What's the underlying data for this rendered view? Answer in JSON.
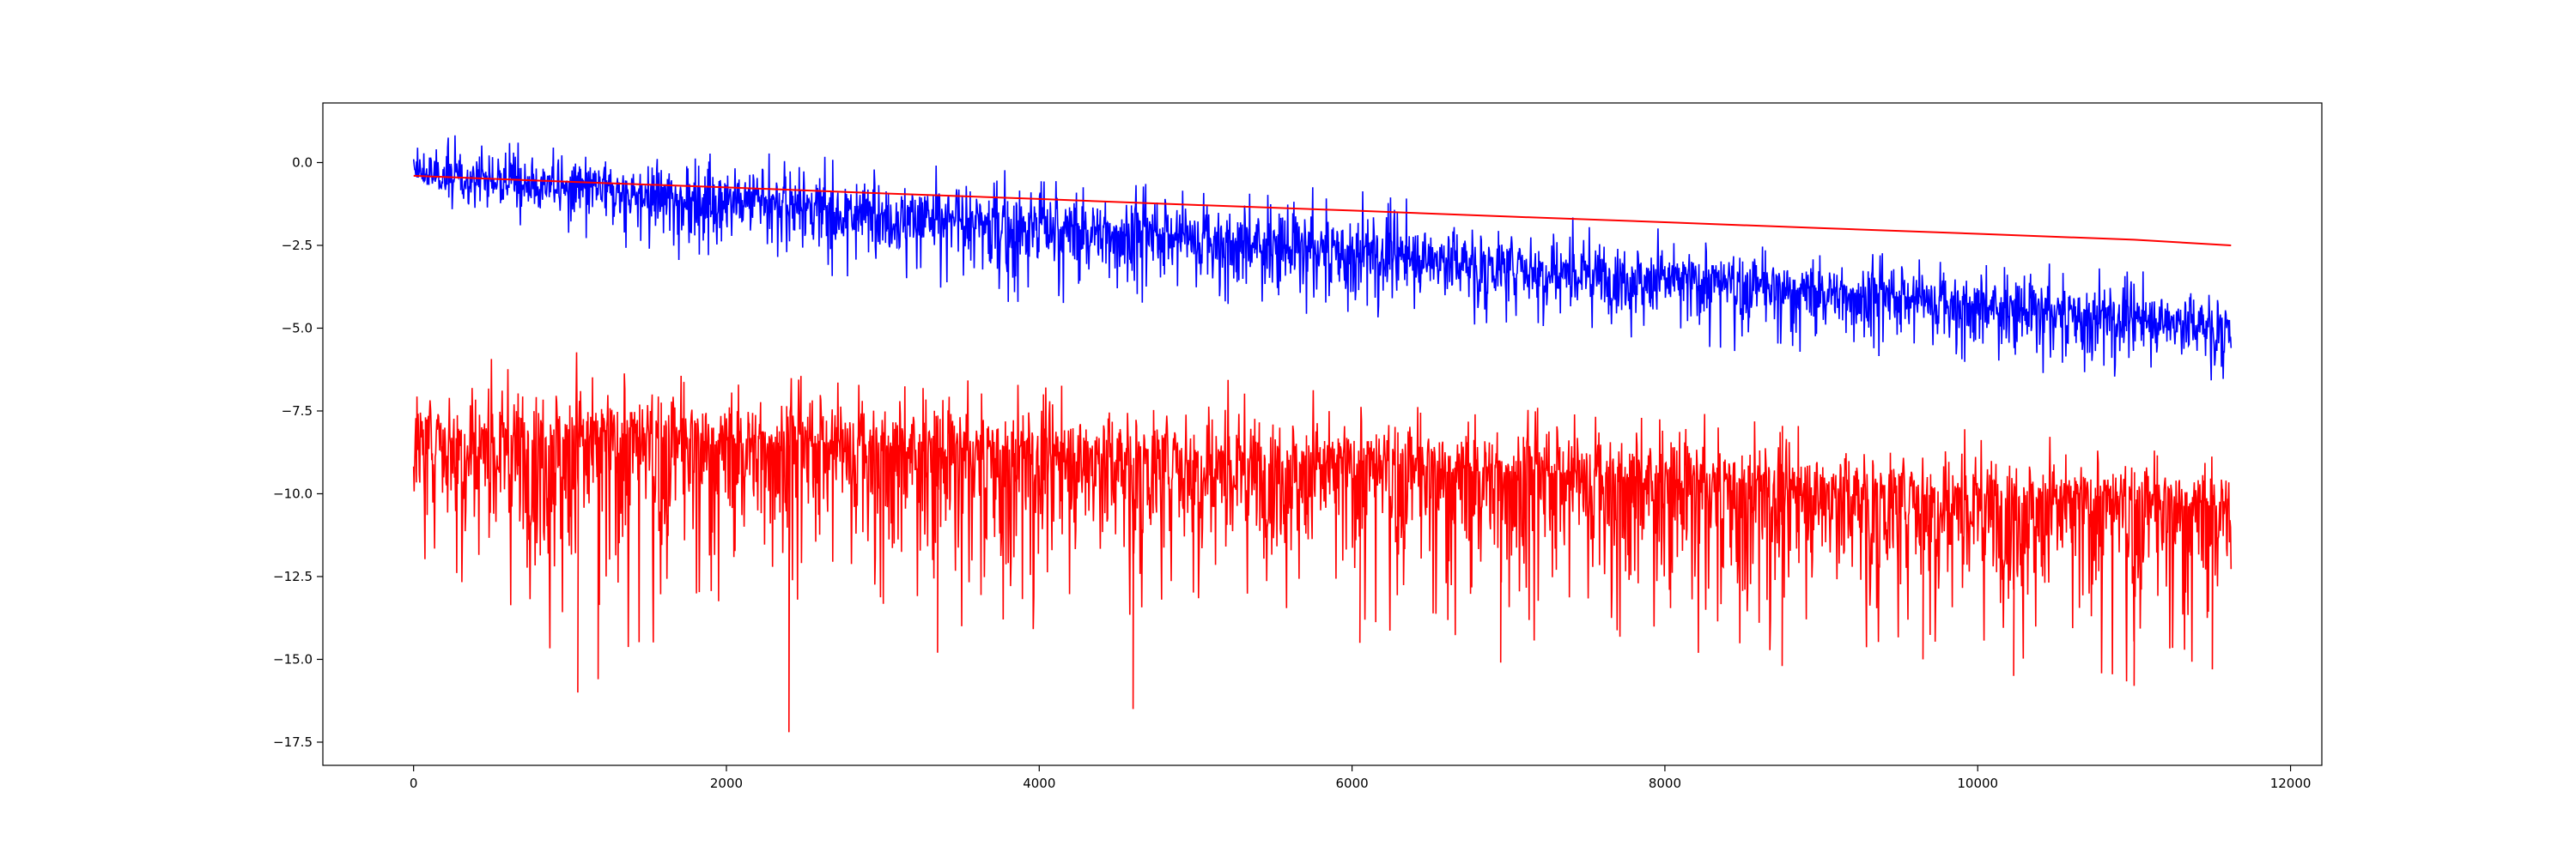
{
  "chart_data": {
    "type": "line",
    "title": "",
    "xlabel": "",
    "ylabel": "",
    "xlim": [
      -580,
      12200
    ],
    "ylim": [
      -18.2,
      1.8
    ],
    "x_ticks": [
      0,
      2000,
      4000,
      6000,
      8000,
      10000,
      12000
    ],
    "x_tick_labels": [
      "0",
      "2000",
      "4000",
      "6000",
      "8000",
      "10000",
      "12000"
    ],
    "y_ticks": [
      0.0,
      -2.5,
      -5.0,
      -7.5,
      -10.0,
      -12.5,
      -15.0,
      -17.5
    ],
    "y_tick_labels": [
      "0.0",
      "−2.5",
      "−5.0",
      "−7.5",
      "−10.0",
      "−12.5",
      "−15.0",
      "−17.5"
    ],
    "grid": false,
    "legend": "none",
    "series": [
      {
        "color": "#0000ff",
        "style": "noisy",
        "x_range": [
          0,
          11620
        ],
        "mean_trend": [
          [
            0,
            -0.35
          ],
          [
            1000,
            -0.75
          ],
          [
            2000,
            -1.15
          ],
          [
            3000,
            -1.55
          ],
          [
            4000,
            -1.95
          ],
          [
            5000,
            -2.3
          ],
          [
            6000,
            -2.7
          ],
          [
            7000,
            -3.1
          ],
          [
            8000,
            -3.5
          ],
          [
            9000,
            -3.9
          ],
          [
            10000,
            -4.3
          ],
          [
            11000,
            -4.7
          ],
          [
            11620,
            -4.95
          ]
        ],
        "upper_envelope": [
          [
            0,
            0.9
          ],
          [
            1000,
            0.7
          ],
          [
            2000,
            0.5
          ],
          [
            3000,
            0.1
          ],
          [
            4000,
            -0.3
          ],
          [
            5000,
            -0.6
          ],
          [
            6000,
            -0.6
          ],
          [
            7000,
            -1.4
          ],
          [
            8000,
            -1.9
          ],
          [
            9000,
            -2.5
          ],
          [
            10000,
            -2.8
          ],
          [
            11000,
            -3.1
          ],
          [
            11620,
            -3.3
          ]
        ],
        "lower_envelope": [
          [
            0,
            -1.2
          ],
          [
            1000,
            -2.3
          ],
          [
            2000,
            -3.3
          ],
          [
            3000,
            -3.6
          ],
          [
            4000,
            -4.4
          ],
          [
            5000,
            -4.5
          ],
          [
            6000,
            -4.7
          ],
          [
            7000,
            -5.2
          ],
          [
            8000,
            -5.6
          ],
          [
            9000,
            -5.9
          ],
          [
            10000,
            -6.3
          ],
          [
            11000,
            -6.6
          ],
          [
            11620,
            -6.8
          ]
        ]
      },
      {
        "color": "#ff0000",
        "style": "smooth",
        "points": [
          [
            0,
            -0.4
          ],
          [
            1000,
            -0.58
          ],
          [
            2000,
            -0.75
          ],
          [
            3000,
            -0.93
          ],
          [
            4000,
            -1.1
          ],
          [
            5000,
            -1.28
          ],
          [
            6000,
            -1.45
          ],
          [
            7000,
            -1.63
          ],
          [
            8000,
            -1.8
          ],
          [
            9000,
            -1.98
          ],
          [
            10000,
            -2.15
          ],
          [
            11000,
            -2.33
          ],
          [
            11620,
            -2.5
          ]
        ]
      },
      {
        "color": "#ff0000",
        "style": "noisy",
        "x_range": [
          0,
          11620
        ],
        "mean_trend": [
          [
            0,
            -8.3
          ],
          [
            1000,
            -8.4
          ],
          [
            2000,
            -8.5
          ],
          [
            3000,
            -8.6
          ],
          [
            4000,
            -8.8
          ],
          [
            5000,
            -9.0
          ],
          [
            6000,
            -9.2
          ],
          [
            7000,
            -9.4
          ],
          [
            8000,
            -9.6
          ],
          [
            9000,
            -9.9
          ],
          [
            10000,
            -10.1
          ],
          [
            11000,
            -10.3
          ],
          [
            11620,
            -10.4
          ]
        ],
        "upper_envelope": [
          [
            0,
            -6.2
          ],
          [
            1000,
            -5.5
          ],
          [
            2000,
            -6.2
          ],
          [
            3000,
            -6.3
          ],
          [
            4000,
            -6.5
          ],
          [
            5000,
            -6.4
          ],
          [
            6000,
            -6.8
          ],
          [
            7000,
            -7.2
          ],
          [
            8000,
            -7.3
          ],
          [
            9000,
            -7.8
          ],
          [
            10000,
            -8.0
          ],
          [
            11000,
            -8.3
          ],
          [
            11620,
            -8.5
          ]
        ],
        "lower_envelope": [
          [
            0,
            -12.5
          ],
          [
            1000,
            -15.9
          ],
          [
            2000,
            -13.5
          ],
          [
            3000,
            -14.0
          ],
          [
            4000,
            -14.4
          ],
          [
            5000,
            -14.0
          ],
          [
            6000,
            -14.0
          ],
          [
            7000,
            -15.0
          ],
          [
            8000,
            -15.0
          ],
          [
            9000,
            -15.0
          ],
          [
            10000,
            -15.5
          ],
          [
            11000,
            -15.8
          ],
          [
            11620,
            -15.2
          ]
        ],
        "spikes": [
          [
            1050,
            -16.0
          ],
          [
            1180,
            -15.6
          ],
          [
            2400,
            -17.2
          ],
          [
            3350,
            -14.8
          ],
          [
            4600,
            -16.5
          ],
          [
            6050,
            -14.5
          ],
          [
            6950,
            -15.1
          ],
          [
            8750,
            -15.2
          ],
          [
            9650,
            -15.0
          ],
          [
            10230,
            -15.5
          ],
          [
            11000,
            -15.8
          ],
          [
            11500,
            -15.3
          ]
        ]
      }
    ]
  }
}
